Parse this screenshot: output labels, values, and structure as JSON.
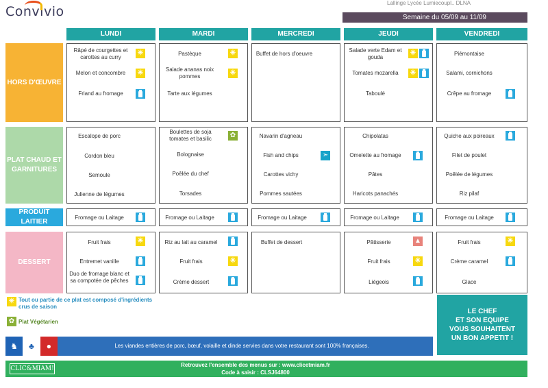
{
  "header": {
    "logo": "Convivio",
    "top_faint": "Lallinge Lycée Lumiecoupl.. DLNA",
    "week": "Semaine du 05/09 au 11/09"
  },
  "days": [
    "LUNDI",
    "MARDI",
    "MERCREDI",
    "JEUDI",
    "VENDREDI"
  ],
  "categories": {
    "hors": "HORS D'ŒUVRE",
    "plat": "PLAT CHAUD ET GARNITURES",
    "lait": "PRODUIT LAITIER",
    "dessert": "DESSERT"
  },
  "menu": {
    "hors": {
      "lundi": [
        {
          "text": "Râpé de courgettes et carottes au curry",
          "icon": "sun-icon"
        },
        {
          "text": "Melon et concombre",
          "icon": "sun-icon"
        },
        {
          "text": "Friand au fromage",
          "icon": "milk-icon"
        }
      ],
      "mardi": [
        {
          "text": "Pastèque",
          "icon": "sun-icon"
        },
        {
          "text": "Salade ananas noix pommes",
          "icon": "sun-icon"
        },
        {
          "text": "Tarte aux légumes",
          "icon": ""
        }
      ],
      "mercredi": [
        {
          "text": "Buffet de hors d'oeuvre",
          "icon": ""
        }
      ],
      "jeudi": [
        {
          "text": "Salade verte Edam et gouda",
          "icon": "sun-milk"
        },
        {
          "text": "Tomates mozarella",
          "icon": "sun-milk"
        },
        {
          "text": "Taboulé",
          "icon": ""
        }
      ],
      "vendredi": [
        {
          "text": "Piémontaise",
          "icon": ""
        },
        {
          "text": "Salami, cornichons",
          "icon": ""
        },
        {
          "text": "Crêpe au fromage",
          "icon": "milk-icon"
        }
      ]
    },
    "plat": {
      "lundi": [
        "Escalope de porc",
        "Cordon bleu",
        "Semoule",
        "Julienne de légumes"
      ],
      "mardi": [
        "Boulettes de soja tomates et basilic",
        "Bolognaise",
        "Poêlée du chef",
        "Torsades"
      ],
      "mercredi": [
        "Navarin d'agneau",
        "Fish and chips",
        "Carottes vichy",
        "Pommes sautées"
      ],
      "jeudi": [
        "Chipolatas",
        "Omelette au fromage",
        "Pâtes",
        "Haricots panachés"
      ],
      "vendredi": [
        "Quiche aux poireaux",
        "Filet de poulet",
        "Poêlée de légumes",
        "Riz pilaf"
      ]
    },
    "lait": "Fromage ou Laitage",
    "dessert": {
      "lundi": [
        "Fruit frais",
        "Entremet vanille",
        "Duo de fromage blanc et sa compotée de pêches"
      ],
      "mardi": [
        "Riz au lait au caramel",
        "Fruit frais",
        "Crème dessert"
      ],
      "mercredi": [
        "Buffet de dessert"
      ],
      "jeudi": [
        "Pâtisserie",
        "Fruit frais",
        "Liégeois"
      ],
      "vendredi": [
        "Fruit frais",
        "Crème caramel",
        "Glace"
      ]
    }
  },
  "legend": {
    "seasonal": "Tout ou partie de ce plat est composé d'ingrédients crus de saison",
    "veg": "Plat Végétarien"
  },
  "chef": [
    "LE CHEF",
    "ET SON EQUIPE",
    "VOUS SOUHAITENT",
    "UN BON APPETIT !"
  ],
  "banner": "Les viandes entières de porc, bœuf, volaille et dinde servies dans votre restaurant sont 100% françaises.",
  "footer": {
    "brand": "CLIC&MIAM!",
    "line1": "Retrouvez l'ensemble des menus sur : www.clicetmiam.fr",
    "line2": "Code à saisir : CLSJ64800"
  },
  "colors": {
    "teal": "#21a4a3",
    "orange": "#f7b334",
    "green_light": "#add9a9",
    "blue": "#2aa9dd",
    "pink": "#f4b7c6",
    "banner_blue": "#2e6fba",
    "footer_green": "#31b05e"
  }
}
